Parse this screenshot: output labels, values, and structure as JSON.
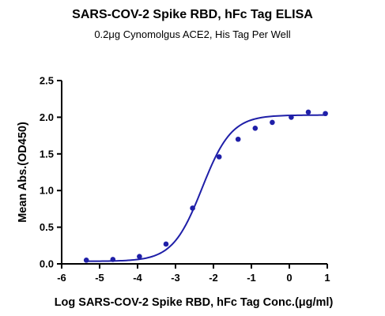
{
  "chart_data": {
    "type": "scatter",
    "title": "SARS-COV-2 Spike RBD, hFc Tag ELISA",
    "subtitle": "0.2μg Cynomolgus ACE2, His Tag Per Well",
    "xlabel": "Log SARS-COV-2 Spike RBD, hFc Tag Conc.(μg/ml)",
    "ylabel": "Mean Abs.(OD450)",
    "xlim": [
      -6,
      1
    ],
    "ylim": [
      0,
      2.5
    ],
    "xticks": [
      "-6",
      "-5",
      "-4",
      "-3",
      "-2",
      "-1",
      "0",
      "1"
    ],
    "yticks": [
      "0.0",
      "0.5",
      "1.0",
      "1.5",
      "2.0",
      "2.5"
    ],
    "grid": false,
    "colors": {
      "series": "#1f1fa8",
      "axis": "#000000"
    },
    "series": [
      {
        "points": [
          {
            "x": -5.35,
            "y": 0.05
          },
          {
            "x": -4.65,
            "y": 0.06
          },
          {
            "x": -3.95,
            "y": 0.1
          },
          {
            "x": -3.25,
            "y": 0.27
          },
          {
            "x": -2.55,
            "y": 0.76
          },
          {
            "x": -1.85,
            "y": 1.46
          },
          {
            "x": -1.35,
            "y": 1.7
          },
          {
            "x": -0.9,
            "y": 1.85
          },
          {
            "x": -0.45,
            "y": 1.93
          },
          {
            "x": 0.05,
            "y": 2.0
          },
          {
            "x": 0.5,
            "y": 2.07
          },
          {
            "x": 0.95,
            "y": 2.05
          }
        ],
        "fit": {
          "model": "4PL",
          "bottom": 0.035,
          "top": 2.03,
          "logEC50": -2.3,
          "hill": 1.12
        }
      }
    ]
  }
}
